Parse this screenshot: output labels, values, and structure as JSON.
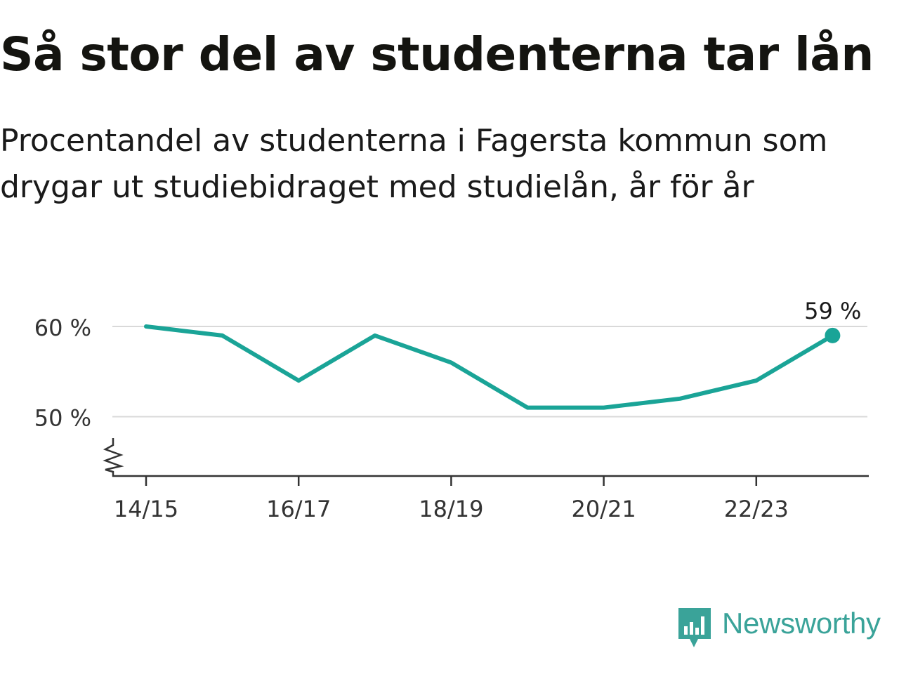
{
  "title": "Så stor del av studenterna tar lån",
  "subtitle": "Procentandel av studenterna i Fagersta kommun som drygar ut studiebidraget med studielån, år för år",
  "brand": {
    "name": "Newsworthy",
    "icon": "newsworthy-logo-icon",
    "color": "#3aa399"
  },
  "colors": {
    "line": "#1aa497",
    "grid": "#d9d9d9",
    "axis": "#333333",
    "text": "#333333"
  },
  "chart_data": {
    "type": "line",
    "title": "Så stor del av studenterna tar lån",
    "subtitle": "Procentandel av studenterna i Fagersta kommun som drygar ut studiebidraget med studielån, år för år",
    "x": [
      "14/15",
      "15/16",
      "16/17",
      "17/18",
      "18/19",
      "19/20",
      "20/21",
      "21/22",
      "22/23",
      "23/24"
    ],
    "x_tick_labels": [
      "14/15",
      "16/17",
      "18/19",
      "20/21",
      "22/23"
    ],
    "series": [
      {
        "values": [
          60,
          59,
          54,
          59,
          56,
          51,
          51,
          52,
          54,
          59
        ]
      }
    ],
    "y_ticks": [
      50,
      60
    ],
    "y_tick_labels": [
      "50 %",
      "60 %"
    ],
    "ylim": [
      43.5,
      63
    ],
    "y_axis_break": true,
    "grid": true,
    "end_label": "59 %",
    "xlabel": "",
    "ylabel": ""
  }
}
